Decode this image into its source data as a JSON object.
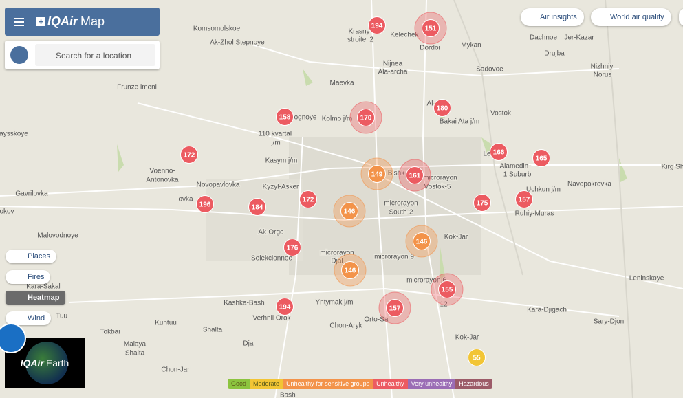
{
  "header": {
    "brand": "IQAir",
    "title": "Map"
  },
  "search": {
    "placeholder": "Search for a location"
  },
  "top_buttons": [
    "Air insights",
    "World air quality"
  ],
  "layers": [
    "Places",
    "Fires",
    "Heatmap",
    "Wind"
  ],
  "earth": {
    "brand": "IQAir",
    "title": "Earth"
  },
  "legend": [
    {
      "label": "Good",
      "color": "#8cc43f"
    },
    {
      "label": "Moderate",
      "color": "#f2c535"
    },
    {
      "label": "Unhealthy for sensitive groups",
      "color": "#f3934a"
    },
    {
      "label": "Unhealthy",
      "color": "#ec5b61"
    },
    {
      "label": "Very unhealthy",
      "color": "#9b6db5"
    },
    {
      "label": "Hazardous",
      "color": "#9c5b68"
    }
  ],
  "places": [
    "Komsomolskoe",
    "Ak-Zhol Stepnoye",
    "Krasny",
    "stroitel 2",
    "Kelechek",
    "Dordoi",
    "Mykan",
    "Dachnoe",
    "Jer-Kazar",
    "Drujba",
    "Nizhniy",
    "Norus",
    "Sadovoe",
    "Nijnea",
    "Ala-archa",
    "Maevka",
    "Frunze imeni",
    "Kolmo j/m",
    "Bakai Ata j/m",
    "Vostok",
    "110 kvartal",
    "j/m",
    "Kasym j/m",
    "aysskoye",
    "Voenno-",
    "Antonovka",
    "Novopavlovka",
    "Kyzyl-Asker",
    "Alamedin-",
    "1 Suburb",
    "Navopokrovka",
    "Kirg Sh",
    "Gavrilovka",
    "Uchkun j/m",
    "Bishk",
    "microrayon",
    "Vostok-5",
    "microrayon",
    "South-2",
    "okov",
    "Ruhiy-Muras",
    "Malovodnoye",
    "Ak-Orgo",
    "Kok-Jar",
    "Selekcionnoe",
    "microrayon",
    "Djal",
    "microrayon 9",
    "microrayon 6",
    "12",
    "Kara-Sakal",
    "Leninskoye",
    "Kashka-Bash",
    "Yntymak j/m",
    "Kara-Djigach",
    "Verhnii Orok",
    "Sary-Djon",
    "Chon-Aryk",
    "Orto-Sai",
    "Kuntuu",
    "Tokbai",
    "Shalta",
    "Kok-Jar",
    "Djal",
    "Malaya",
    "Shalta",
    "Chon-Jar",
    "Bash-",
    "-Tuu",
    "Al",
    "ognoye",
    "Le",
    "ovka"
  ],
  "stations": [
    {
      "value": 194,
      "color": "#ec5b61"
    },
    {
      "value": 151,
      "color": "#ec5b61"
    },
    {
      "value": 158,
      "color": "#ec5b61"
    },
    {
      "value": 170,
      "color": "#ec5b61"
    },
    {
      "value": 180,
      "color": "#ec5b61"
    },
    {
      "value": 172,
      "color": "#ec5b61"
    },
    {
      "value": 166,
      "color": "#ec5b61"
    },
    {
      "value": 165,
      "color": "#ec5b61"
    },
    {
      "value": 149,
      "color": "#f3934a"
    },
    {
      "value": 161,
      "color": "#ec5b61"
    },
    {
      "value": 196,
      "color": "#ec5b61"
    },
    {
      "value": 184,
      "color": "#ec5b61"
    },
    {
      "value": 172,
      "color": "#ec5b61"
    },
    {
      "value": 146,
      "color": "#f3934a"
    },
    {
      "value": 175,
      "color": "#ec5b61"
    },
    {
      "value": 157,
      "color": "#ec5b61"
    },
    {
      "value": 146,
      "color": "#f3934a"
    },
    {
      "value": 176,
      "color": "#ec5b61"
    },
    {
      "value": 146,
      "color": "#f3934a"
    },
    {
      "value": 155,
      "color": "#ec5b61"
    },
    {
      "value": 194,
      "color": "#ec5b61"
    },
    {
      "value": 157,
      "color": "#ec5b61"
    },
    {
      "value": 55,
      "color": "#f2c535"
    }
  ]
}
